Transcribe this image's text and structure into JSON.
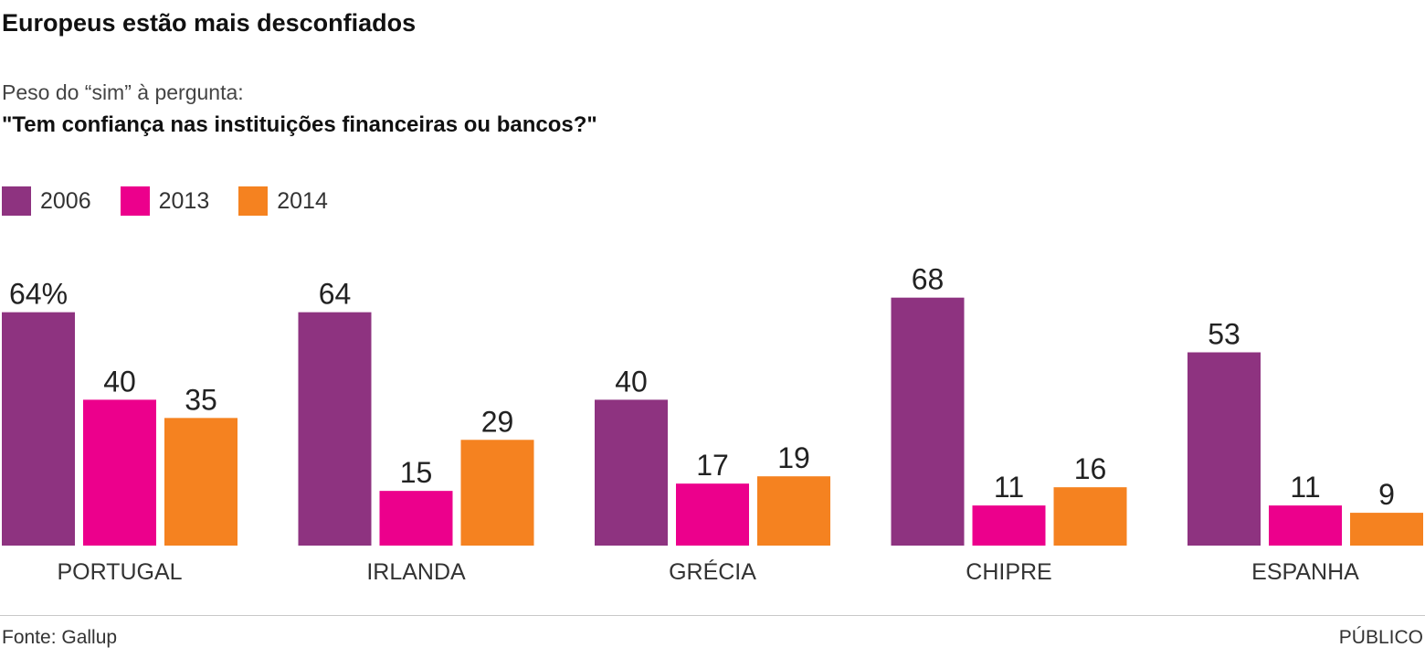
{
  "header": {
    "title": "Europeus estão mais desconfiados",
    "subtitle": "Peso do “sim” à pergunta:",
    "question": "\"Tem confiança nas instituições financeiras ou bancos?\""
  },
  "footer": {
    "source": "Fonte: Gallup",
    "brand": "PÚBLICO"
  },
  "chart_data": {
    "type": "bar",
    "title": "Europeus estão mais desconfiados",
    "categories": [
      "PORTUGAL",
      "IRLANDA",
      "GRÉCIA",
      "CHIPRE",
      "ESPANHA"
    ],
    "series": [
      {
        "name": "2006",
        "color": "#8E3380",
        "values": [
          64,
          64,
          40,
          68,
          53
        ]
      },
      {
        "name": "2013",
        "color": "#EC008C",
        "values": [
          40,
          15,
          17,
          11,
          11
        ]
      },
      {
        "name": "2014",
        "color": "#F58220",
        "values": [
          35,
          29,
          19,
          16,
          9
        ]
      }
    ],
    "first_label_suffix": "%",
    "unit": "%",
    "ylim": [
      0,
      70
    ],
    "grid": false,
    "legend": "top-left",
    "xlabel": "",
    "ylabel": ""
  }
}
